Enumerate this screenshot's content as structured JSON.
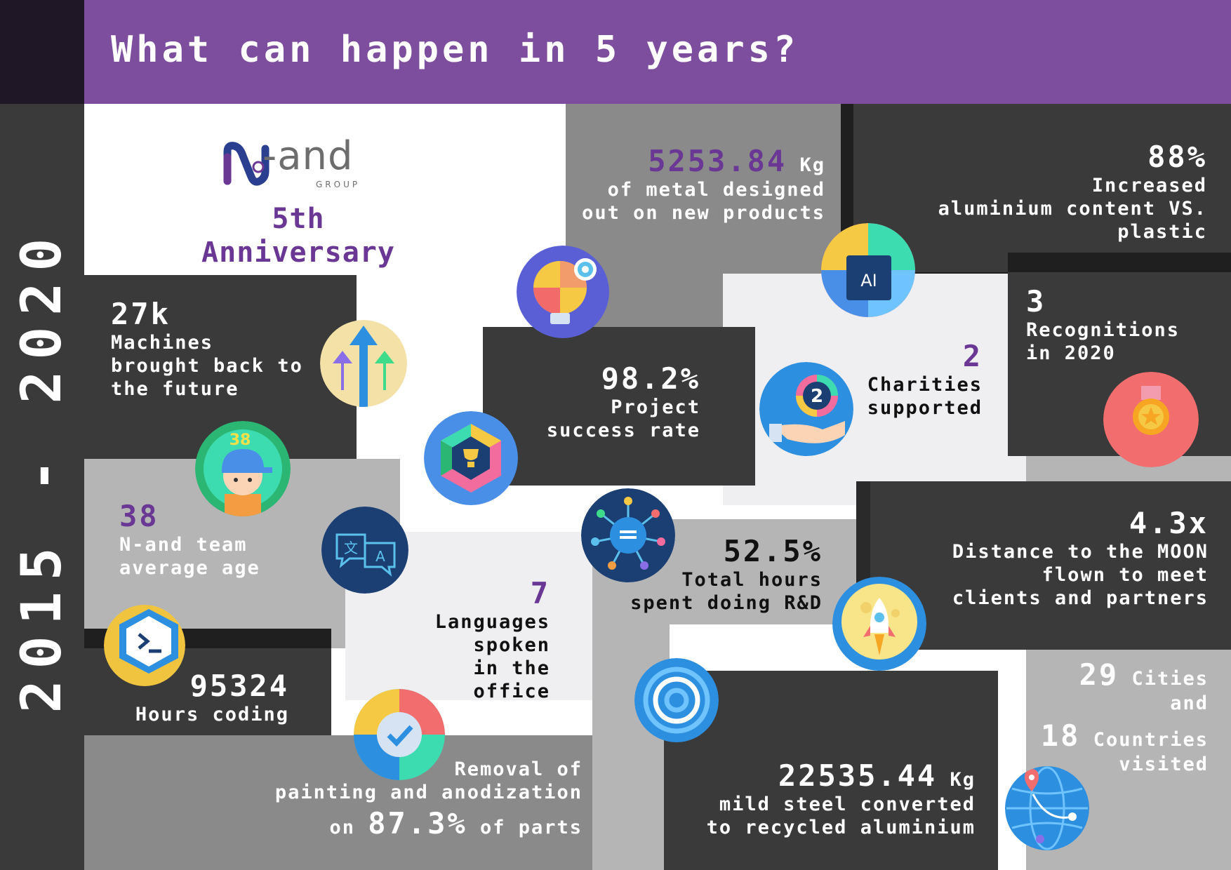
{
  "header": {
    "title": "What can happen in 5 years?"
  },
  "sidebar": {
    "years": "2015 - 2020"
  },
  "logo": {
    "brand": "N-and",
    "group": "GROUP",
    "subtitle": "5th Anniversary"
  },
  "colors": {
    "purple": "#7d4e9e",
    "accent_purple": "#6a3894",
    "dark": "#3a3a3a",
    "mid": "#8a8a8a",
    "light": "#b5b5b5"
  },
  "stats": {
    "metal": {
      "value": "5253.84",
      "unit": "Kg",
      "line1": "of metal designed",
      "line2": "out on new products"
    },
    "aluminium": {
      "value": "88%",
      "line1": "Increased",
      "line2": "aluminium content VS. plastic"
    },
    "machines": {
      "value": "27k",
      "line1": "Machines",
      "line2": "brought back to",
      "line3": "the future"
    },
    "success": {
      "value": "98.2%",
      "line1": "Project",
      "line2": "success rate"
    },
    "charities": {
      "value": "2",
      "line1": "Charities",
      "line2": "supported"
    },
    "recognitions": {
      "value": "3",
      "line1": "Recognitions",
      "line2": "in 2020"
    },
    "age": {
      "value": "38",
      "line1": "N-and team",
      "line2": "average age"
    },
    "languages": {
      "value": "7",
      "line1": "Languages",
      "line2": "spoken",
      "line3": "in the office"
    },
    "rnd": {
      "value": "52.5%",
      "line1": "Total hours",
      "line2": "spent doing R&D"
    },
    "moon": {
      "value": "4.3x",
      "line1": "Distance to the MOON",
      "line2": "flown to meet",
      "line3": "clients and partners"
    },
    "coding": {
      "value": "95324",
      "line1": "Hours coding"
    },
    "travel": {
      "cities_value": "29",
      "cities_label": "Cities",
      "and": "and",
      "countries_value": "18",
      "countries_label": "Countries",
      "visited": "visited"
    },
    "painting": {
      "line1": "Removal of",
      "line2": "painting and anodization",
      "prefix": "on",
      "value": "87.3%",
      "suffix": "of parts"
    },
    "steel": {
      "value": "22535.44",
      "unit": "Kg",
      "line1": "mild steel converted",
      "line2": "to recycled aluminium"
    }
  },
  "icons": {
    "age_badge": "38",
    "charity_badge": "2",
    "ai_badge": "AI",
    "language_glyph_1": "文",
    "language_glyph_2": "A"
  }
}
